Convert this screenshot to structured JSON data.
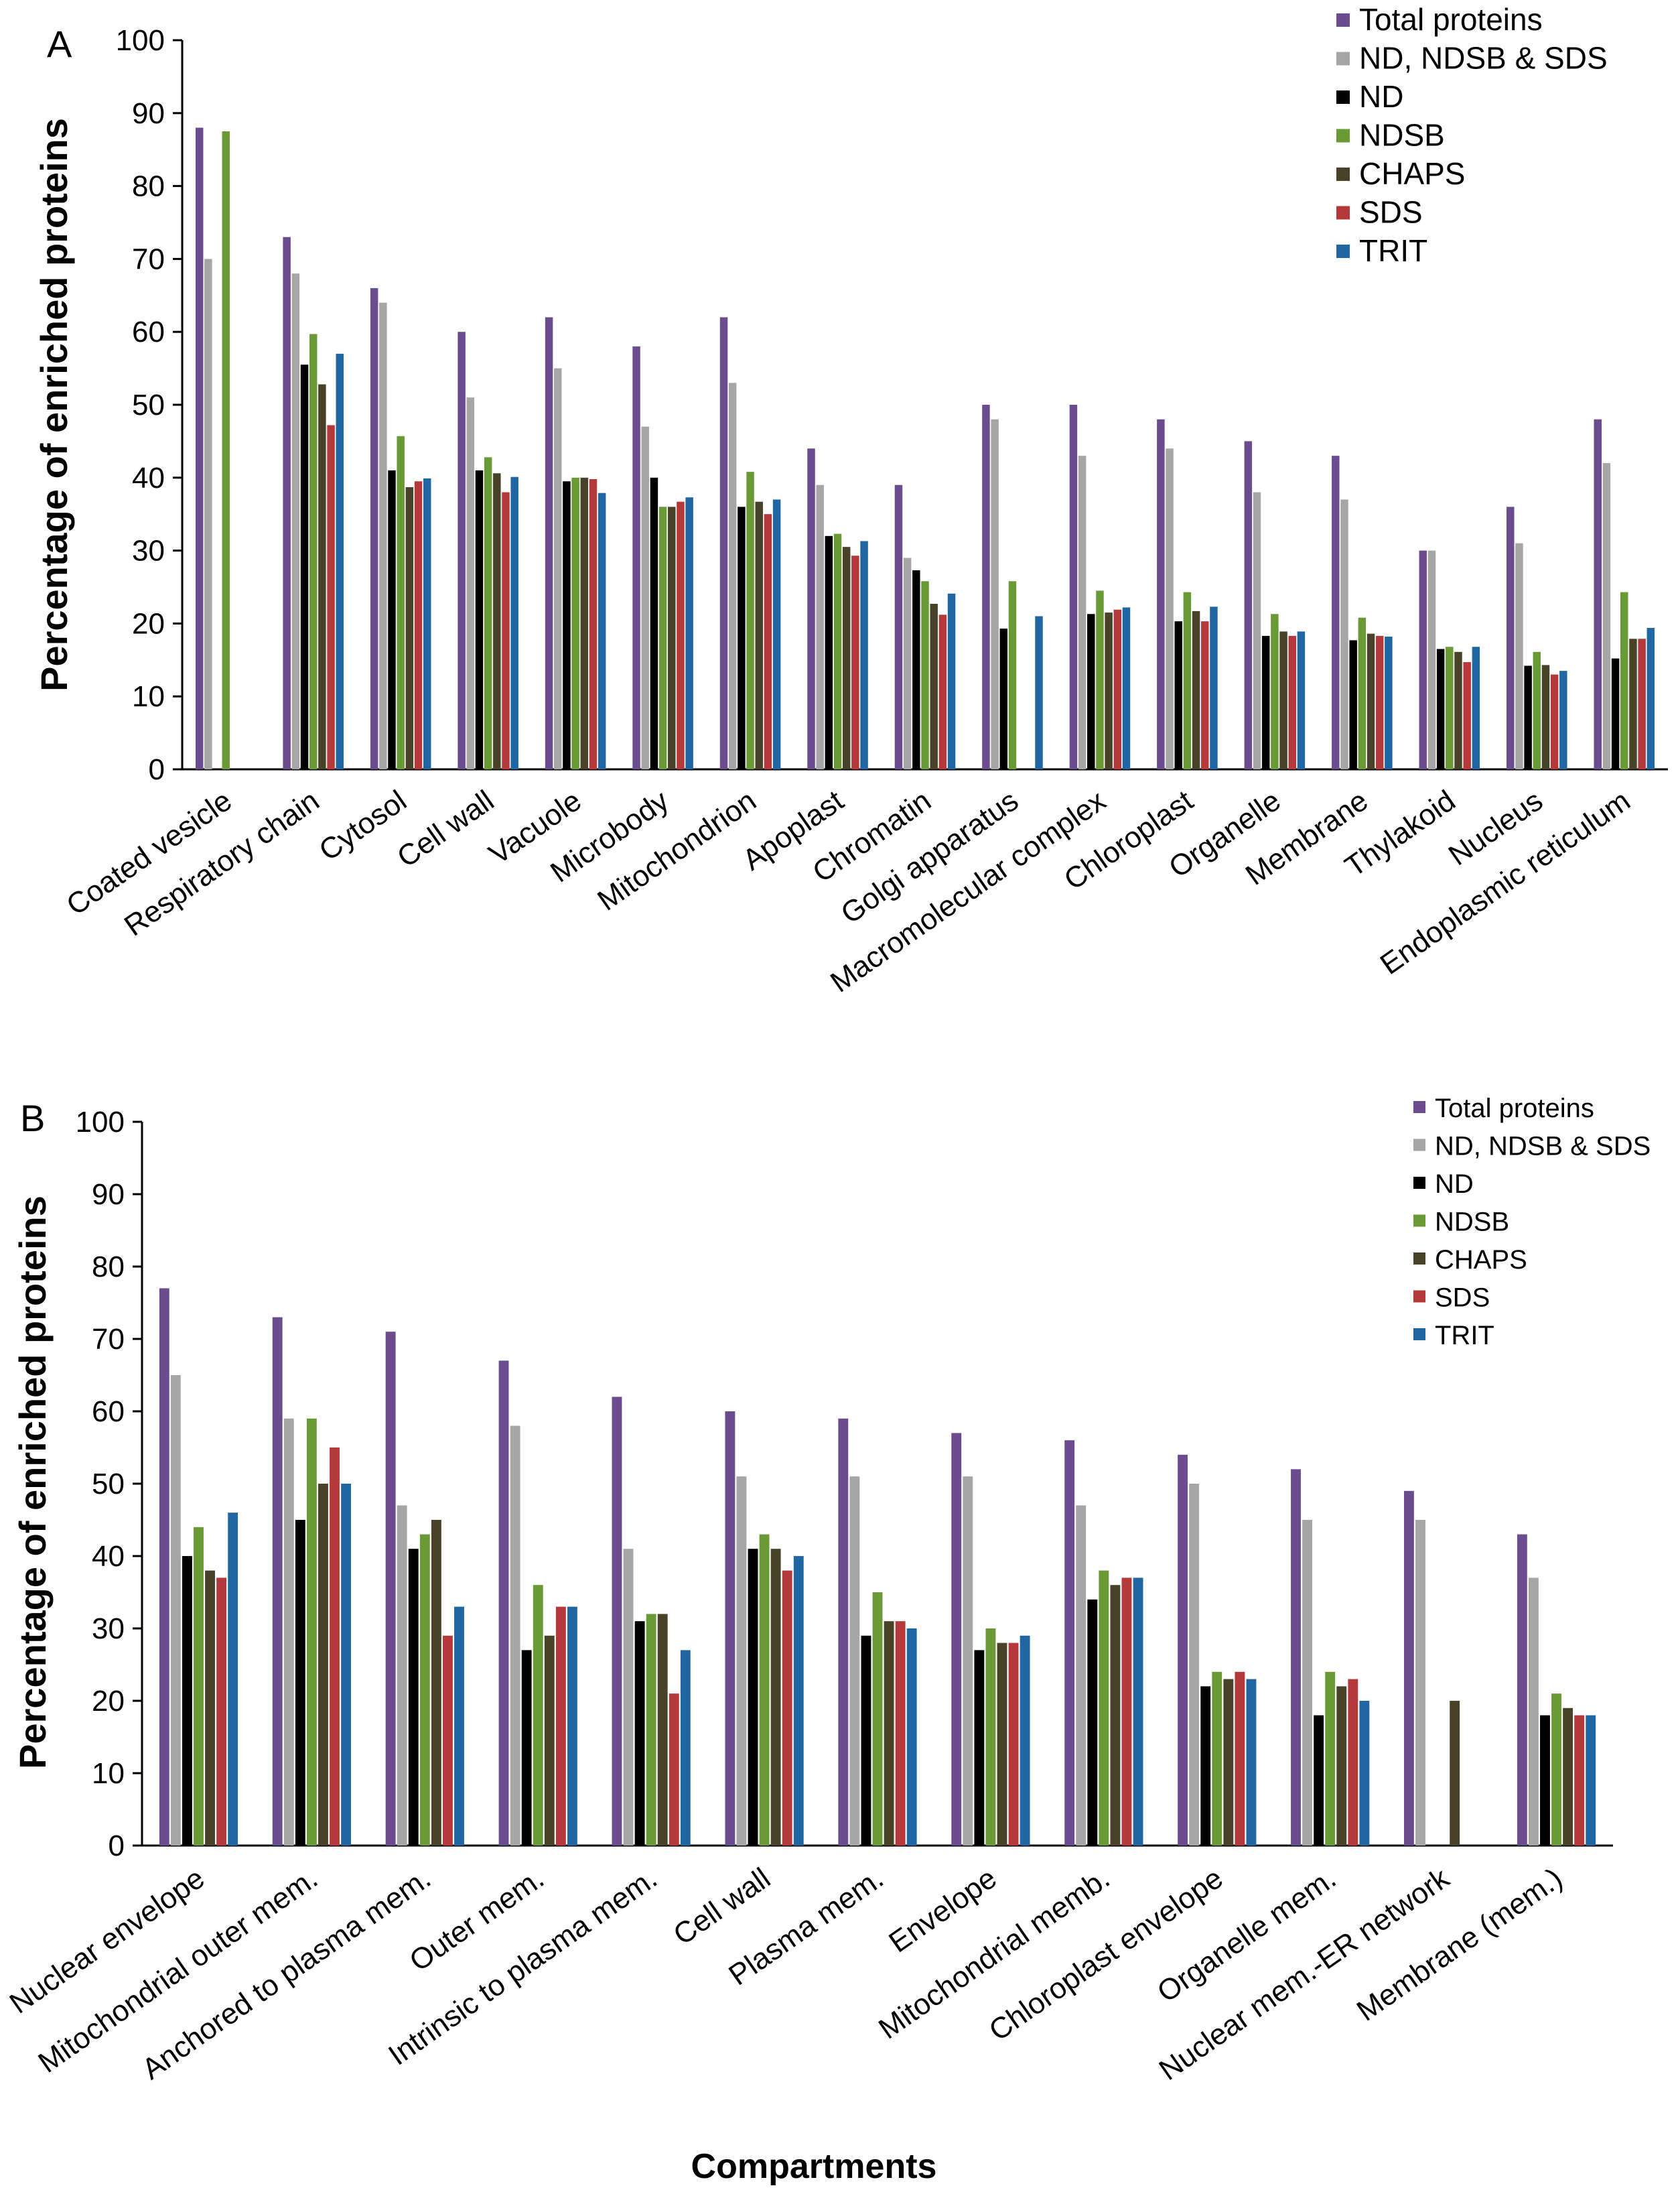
{
  "chart_data": [
    {
      "type": "bar",
      "panel": "A",
      "title": "",
      "xlabel": "",
      "ylabel": "Percentage of enriched proteins",
      "ylim": [
        0,
        100
      ],
      "yticks": [
        "0",
        "10",
        "20",
        "30",
        "40",
        "50",
        "60",
        "70",
        "80",
        "90",
        "100"
      ],
      "grid": false,
      "legend_position": "top-right",
      "categories": [
        "Coated vesicle",
        "Respiratory chain",
        "Cytosol",
        "Cell wall",
        "Vacuole",
        "Microbody",
        "Mitochondrion",
        "Apoplast",
        "Chromatin",
        "Golgi apparatus",
        "Macromolecular complex",
        "Chloroplast",
        "Organelle",
        "Membrane",
        "Thylakoid",
        "Nucleus",
        "Endoplasmic reticulum"
      ],
      "series": [
        {
          "name": "Total proteins",
          "color": "#6b4c8e",
          "values": [
            88,
            73,
            66,
            60,
            62,
            58,
            62,
            44,
            39,
            50,
            50,
            48,
            45,
            43,
            30,
            36,
            48
          ]
        },
        {
          "name": "ND, NDSB & SDS",
          "color": "#a6a6a6",
          "values": [
            70,
            68,
            64,
            51,
            55,
            47,
            53,
            39,
            29,
            48,
            43,
            44,
            38,
            37,
            30,
            31,
            42
          ]
        },
        {
          "name": "ND",
          "color": "#000000",
          "values": [
            0,
            55.5,
            41,
            41,
            39.5,
            40,
            36,
            32,
            27.3,
            19.3,
            21.3,
            20.3,
            18.3,
            17.7,
            16.5,
            14.2,
            15.2
          ]
        },
        {
          "name": "NDSB",
          "color": "#6a9a35",
          "values": [
            87.5,
            59.7,
            45.7,
            42.8,
            40,
            36,
            40.8,
            32.3,
            25.8,
            25.8,
            24.5,
            24.3,
            21.3,
            20.8,
            16.8,
            16.1,
            24.3
          ]
        },
        {
          "name": "CHAPS",
          "color": "#4a4228",
          "values": [
            0,
            52.8,
            38.7,
            40.6,
            40,
            36,
            36.7,
            30.5,
            22.7,
            0,
            21.5,
            21.7,
            18.9,
            18.6,
            16.1,
            14.3,
            17.9
          ]
        },
        {
          "name": "SDS",
          "color": "#b5393a",
          "values": [
            0,
            47.2,
            39.5,
            38,
            39.8,
            36.7,
            35,
            29.3,
            21.2,
            0,
            21.9,
            20.3,
            18.3,
            18.3,
            14.7,
            13,
            17.9
          ]
        },
        {
          "name": "TRIT",
          "color": "#1f66a3",
          "values": [
            0,
            57,
            39.9,
            40.1,
            37.9,
            37.3,
            37,
            31.3,
            24.1,
            21,
            22.2,
            22.3,
            18.9,
            18.2,
            16.8,
            13.5,
            19.4
          ]
        }
      ]
    },
    {
      "type": "bar",
      "panel": "B",
      "title": "",
      "xlabel": "Compartments",
      "ylabel": "Percentage of enriched proteins",
      "ylim": [
        0,
        100
      ],
      "yticks": [
        "0",
        "10",
        "20",
        "30",
        "40",
        "50",
        "60",
        "70",
        "80",
        "90",
        "100"
      ],
      "grid": false,
      "legend_position": "top-right",
      "categories": [
        "Nuclear envelope",
        "Mitochondrial outer mem.",
        "Anchored to plasma mem.",
        "Outer mem.",
        "Intrinsic to plasma mem.",
        "Cell wall",
        "Plasma mem.",
        "Envelope",
        "Mitochondrial memb.",
        "Chloroplast envelope",
        "Organelle mem.",
        "Nuclear mem.-ER network",
        "Membrane (mem.)"
      ],
      "series": [
        {
          "name": "Total proteins",
          "color": "#6b4c8e",
          "values": [
            77,
            73,
            71,
            67,
            62,
            60,
            59,
            57,
            56,
            54,
            52,
            49,
            43
          ]
        },
        {
          "name": "ND, NDSB & SDS",
          "color": "#a6a6a6",
          "values": [
            65,
            59,
            47,
            58,
            41,
            51,
            51,
            51,
            47,
            50,
            45,
            45,
            37
          ]
        },
        {
          "name": "ND",
          "color": "#000000",
          "values": [
            40,
            45,
            41,
            27,
            31,
            41,
            29,
            27,
            34,
            22,
            18,
            0,
            18
          ]
        },
        {
          "name": "NDSB",
          "color": "#6a9a35",
          "values": [
            44,
            59,
            43,
            36,
            32,
            43,
            35,
            30,
            38,
            24,
            24,
            0,
            21
          ]
        },
        {
          "name": "CHAPS",
          "color": "#4a4228",
          "values": [
            38,
            50,
            45,
            29,
            32,
            41,
            31,
            28,
            36,
            23,
            22,
            20,
            19
          ]
        },
        {
          "name": "SDS",
          "color": "#b5393a",
          "values": [
            37,
            55,
            29,
            33,
            21,
            38,
            31,
            28,
            37,
            24,
            23,
            0,
            18
          ]
        },
        {
          "name": "TRIT",
          "color": "#1f66a3",
          "values": [
            46,
            50,
            33,
            33,
            27,
            40,
            30,
            29,
            37,
            23,
            20,
            0,
            18
          ]
        }
      ]
    }
  ]
}
